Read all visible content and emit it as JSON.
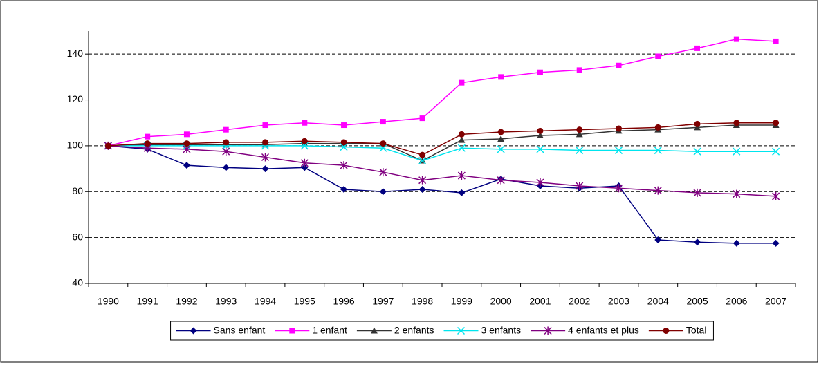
{
  "chart_data": {
    "type": "line",
    "categories": [
      "1990",
      "1991",
      "1992",
      "1993",
      "1994",
      "1995",
      "1996",
      "1997",
      "1998",
      "1999",
      "2000",
      "2001",
      "2002",
      "2003",
      "2004",
      "2005",
      "2006",
      "2007"
    ],
    "series": [
      {
        "name": "Sans enfant",
        "color": "#000080",
        "marker": "diamond",
        "values": [
          100,
          98.5,
          91.5,
          90.5,
          90,
          90.5,
          81,
          80,
          81,
          79.5,
          85.5,
          82.5,
          81.5,
          82.5,
          59,
          58,
          57.5,
          57.5
        ]
      },
      {
        "name": "1 enfant",
        "color": "#ff00ff",
        "marker": "square",
        "values": [
          100,
          104,
          105,
          107,
          109,
          110,
          109,
          110.5,
          112,
          127.5,
          130,
          132,
          133,
          135,
          139,
          142.5,
          146.5,
          145.5
        ]
      },
      {
        "name": "2 enfants",
        "color": "#333333",
        "marker": "triangle",
        "values": [
          100,
          100.5,
          100.5,
          100.5,
          100.5,
          101,
          101,
          101,
          93.5,
          102.5,
          103,
          104.5,
          105,
          106.5,
          107,
          108,
          109,
          109
        ]
      },
      {
        "name": "3 enfants",
        "color": "#00e5ee",
        "marker": "x",
        "values": [
          100,
          100,
          100,
          100,
          100,
          100,
          99.5,
          99,
          93.5,
          99,
          98.5,
          98.5,
          98,
          98,
          98,
          97.5,
          97.5,
          97.5
        ]
      },
      {
        "name": "4 enfants et plus",
        "color": "#800080",
        "marker": "asterisk",
        "values": [
          100,
          99,
          98.5,
          97.5,
          95,
          92.5,
          91.5,
          88.5,
          85,
          87,
          85,
          84,
          82.5,
          81.5,
          80.5,
          79.5,
          79,
          78
        ]
      },
      {
        "name": "Total",
        "color": "#800000",
        "marker": "circle",
        "values": [
          100,
          101,
          101,
          101.5,
          101.5,
          102,
          101.5,
          101,
          96,
          105,
          106,
          106.5,
          107,
          107.5,
          108,
          109.5,
          110,
          110
        ]
      }
    ],
    "ylim": [
      40,
      150
    ],
    "yticks": [
      40,
      60,
      80,
      100,
      120,
      140
    ],
    "grid": true
  }
}
